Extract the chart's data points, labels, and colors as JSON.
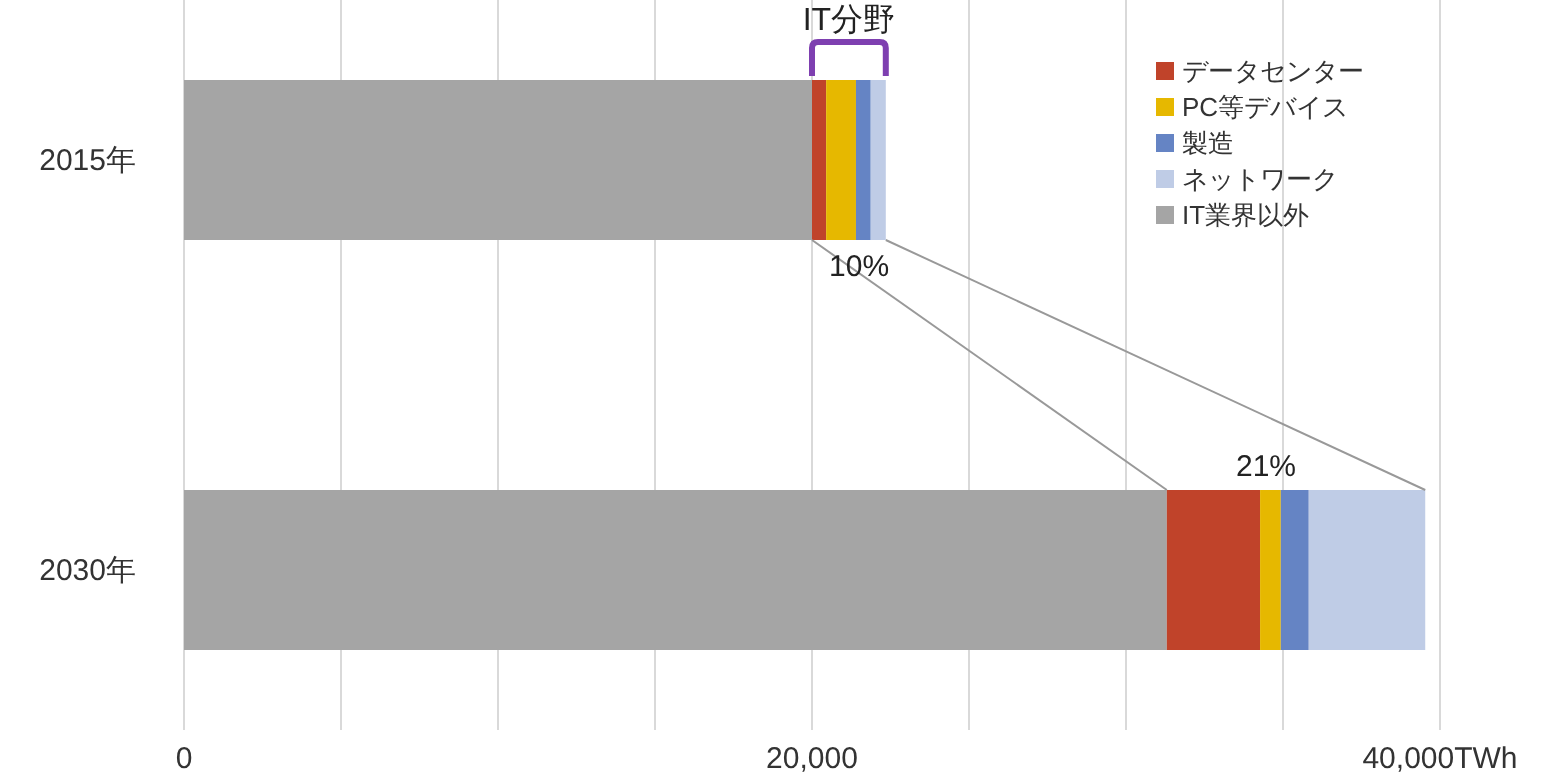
{
  "chart_data": {
    "type": "bar",
    "orientation": "horizontal",
    "stacked": true,
    "categories": [
      "2015年",
      "2030年"
    ],
    "series": [
      {
        "name": "IT業界以外",
        "color": "#a5a5a5",
        "values": [
          20000,
          31300
        ]
      },
      {
        "name": "データセンター",
        "color": "#c0432a",
        "values": [
          450,
          2970
        ]
      },
      {
        "name": "PC等デバイス",
        "color": "#e6b800",
        "values": [
          950,
          660
        ]
      },
      {
        "name": "製造",
        "color": "#6584c4",
        "values": [
          470,
          890
        ]
      },
      {
        "name": "ネットワーク",
        "color": "#bfcce6",
        "values": [
          480,
          3710
        ]
      }
    ],
    "xlim": [
      0,
      40000
    ],
    "xticks": [
      0,
      {
        "value": 5000,
        "label": null
      },
      {
        "value": 10000,
        "label": null
      },
      {
        "value": 15000,
        "label": null
      },
      {
        "value": 20000,
        "label": "20,000"
      },
      {
        "value": 25000,
        "label": null
      },
      {
        "value": 30000,
        "label": null
      },
      {
        "value": 35000,
        "label": null
      },
      {
        "value": 40000,
        "label": "40,000TWh"
      }
    ],
    "grid": "x",
    "legend": "top right",
    "annotations": [
      "IT分野",
      {
        "text": "10%",
        "x": 21500,
        "y": "2015年"
      },
      "21%"
    ]
  }
}
